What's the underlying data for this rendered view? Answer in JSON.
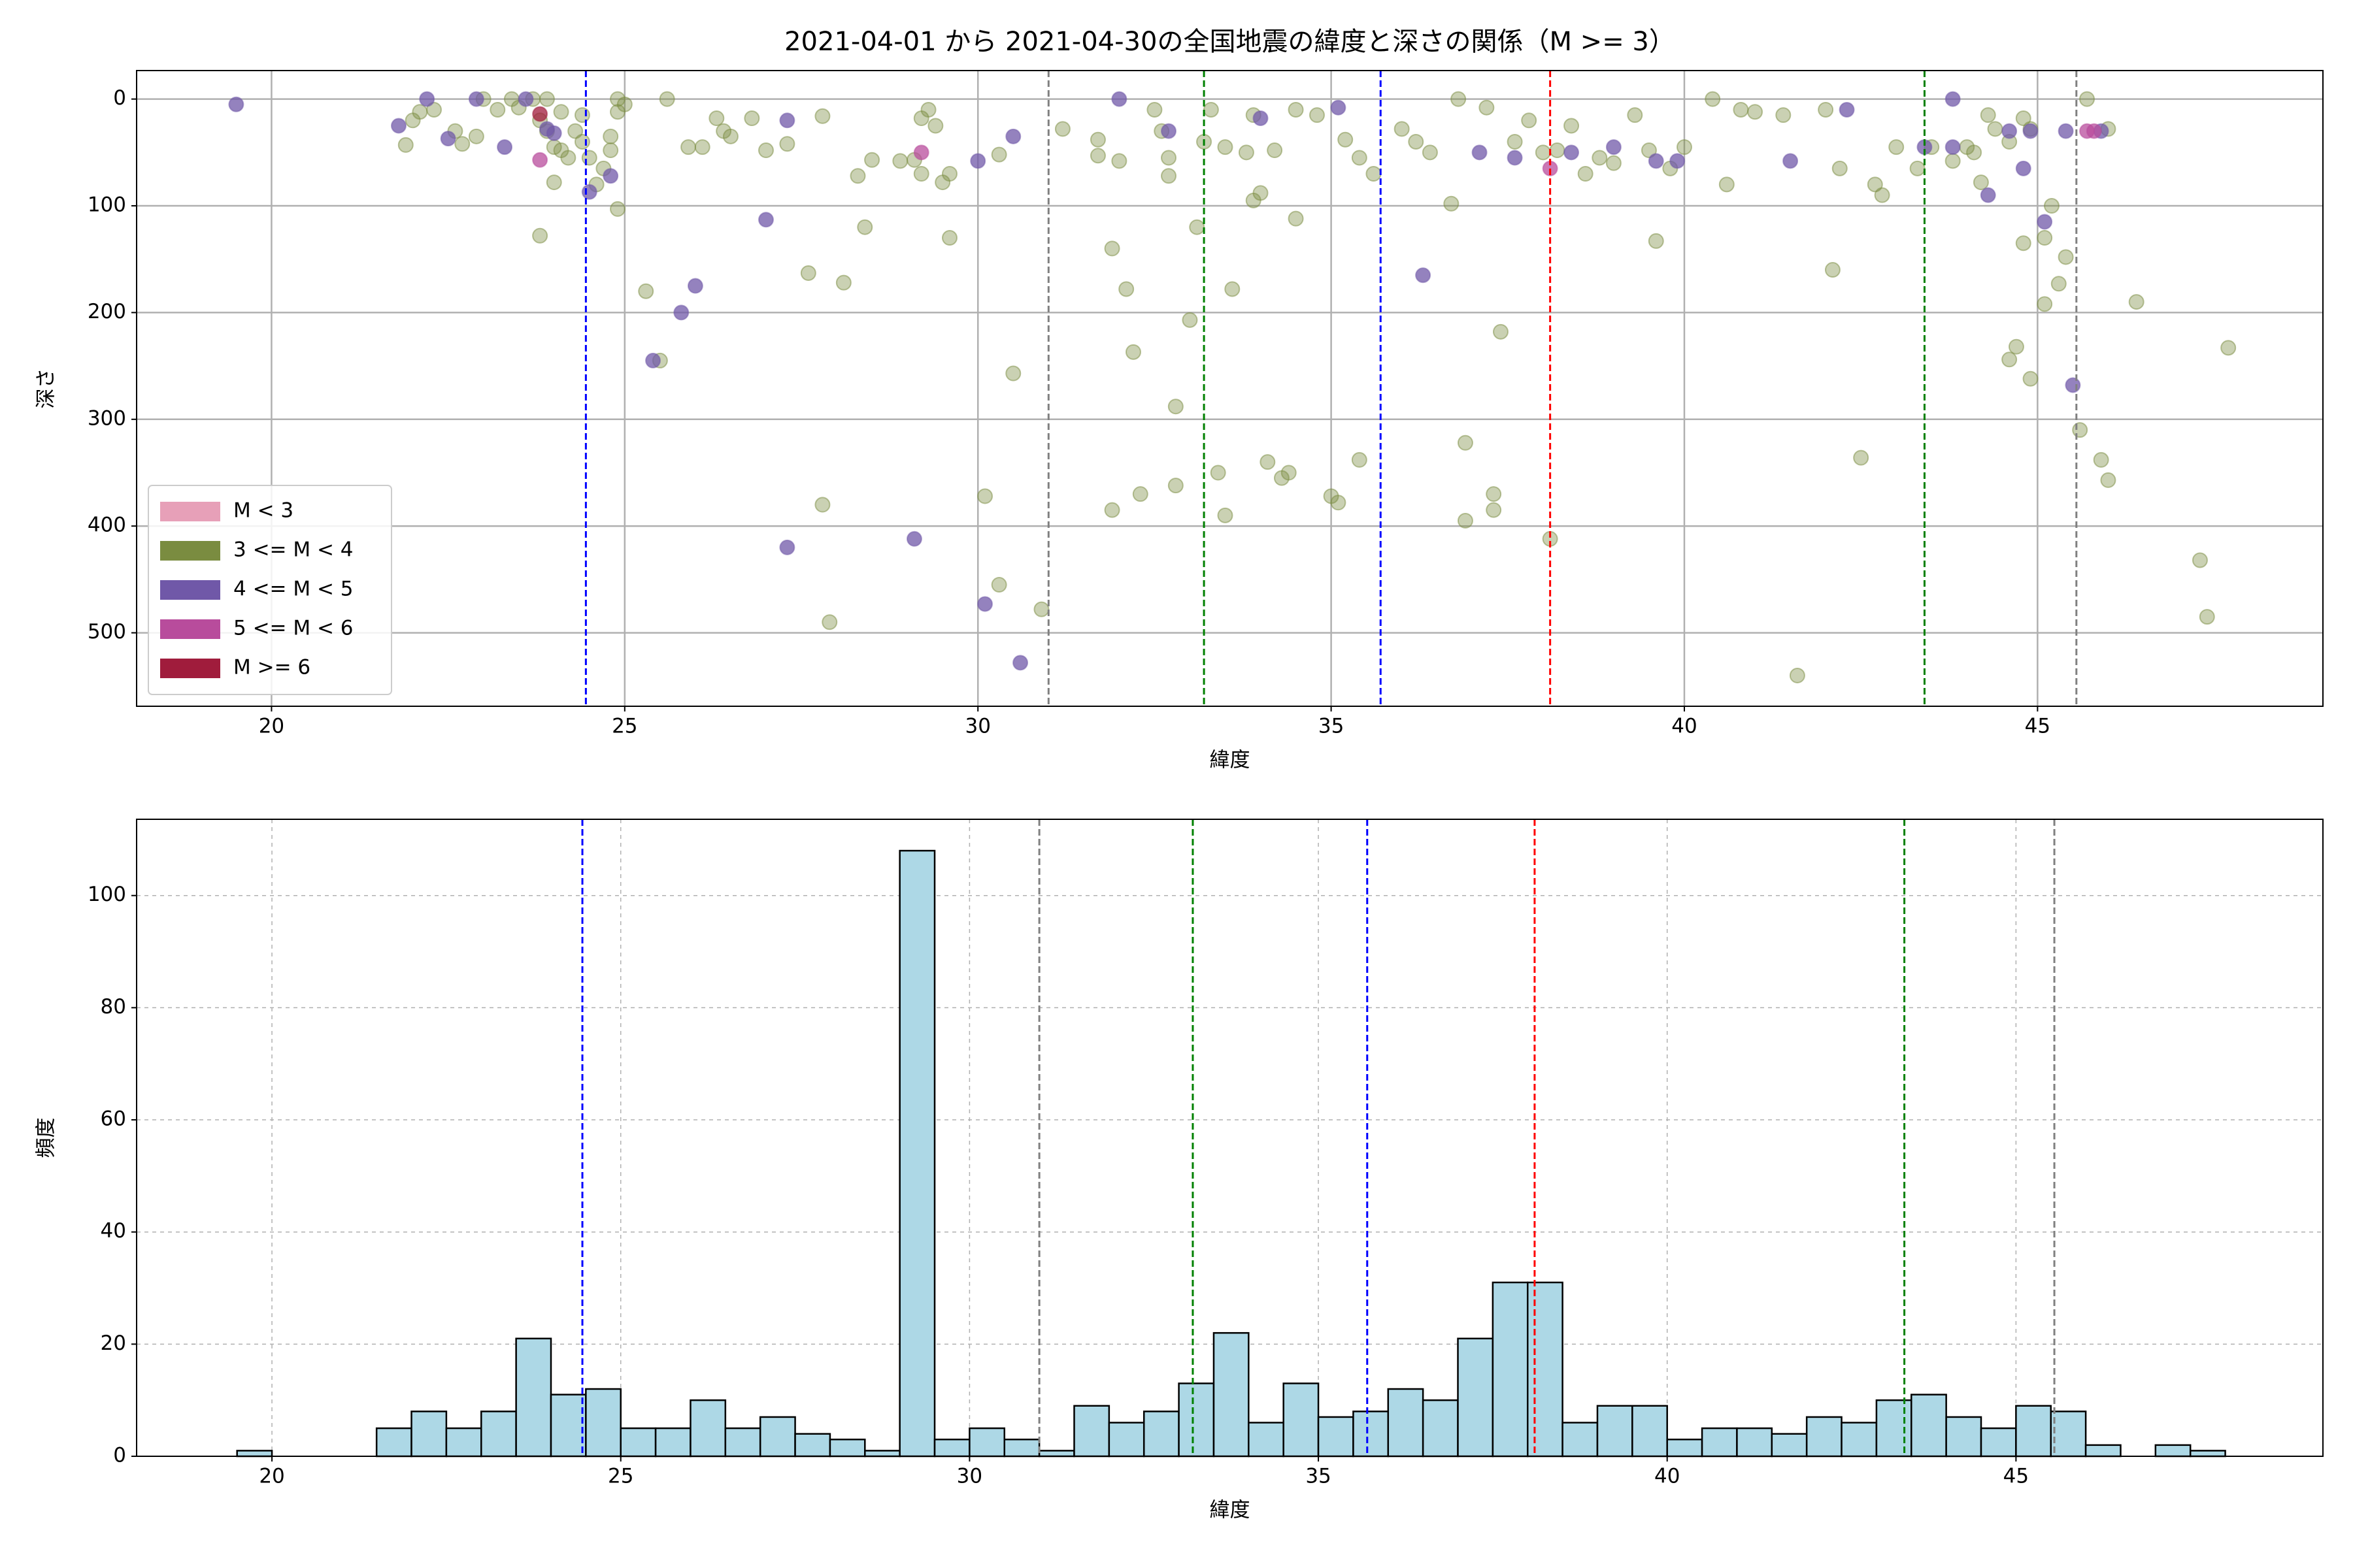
{
  "chart_data": [
    {
      "type": "scatter",
      "title": "2021-04-01 から 2021-04-30の全国地震の緯度と深さの関係（M >= 3）",
      "x_label": "緯度",
      "y_label": "深さ",
      "xlim": [
        18.09,
        49.04
      ],
      "ylim": [
        568.8,
        -26.7
      ],
      "xticks": [
        20,
        25,
        30,
        35,
        40,
        45
      ],
      "yticks": [
        0,
        100,
        200,
        300,
        400,
        500
      ],
      "grid": "solid",
      "legend": "lower left",
      "vlines": [
        {
          "x": 24.45,
          "color": "#0000ff"
        },
        {
          "x": 31.0,
          "color": "#808080"
        },
        {
          "x": 33.2,
          "color": "#008000"
        },
        {
          "x": 35.7,
          "color": "#0000ff"
        },
        {
          "x": 38.1,
          "color": "#ff0000"
        },
        {
          "x": 43.4,
          "color": "#008000"
        },
        {
          "x": 45.55,
          "color": "#808080"
        }
      ],
      "series": [
        {
          "name": "M < 3",
          "color": "#e7a0b8",
          "x": [],
          "y": []
        },
        {
          "name": "3 <= M < 4",
          "color": "#7a8c40",
          "x": [
            21.9,
            22.0,
            22.1,
            22.3,
            22.6,
            22.7,
            22.9,
            23.0,
            23.2,
            23.4,
            23.5,
            23.7,
            23.8,
            23.9,
            23.8,
            23.9,
            24.0,
            24.1,
            24.2,
            24.0,
            24.3,
            24.4,
            24.1,
            24.4,
            24.5,
            24.6,
            24.7,
            24.8,
            24.8,
            24.9,
            24.9,
            25.0,
            24.9,
            25.3,
            25.6,
            25.5,
            25.9,
            26.1,
            26.3,
            26.4,
            26.5,
            26.8,
            27.0,
            27.3,
            27.6,
            27.8,
            27.8,
            27.9,
            28.1,
            28.3,
            28.4,
            28.5,
            28.9,
            29.1,
            29.2,
            29.3,
            29.2,
            29.4,
            29.5,
            29.6,
            29.6,
            30.1,
            30.3,
            30.3,
            30.5,
            30.9,
            31.2,
            31.7,
            31.7,
            31.9,
            31.9,
            32.0,
            32.1,
            32.2,
            32.3,
            32.5,
            32.6,
            32.7,
            32.7,
            32.8,
            32.8,
            33.0,
            33.1,
            33.2,
            33.3,
            33.4,
            33.5,
            33.5,
            33.6,
            33.8,
            33.9,
            33.9,
            34.0,
            34.1,
            34.2,
            34.3,
            34.4,
            34.5,
            34.5,
            34.8,
            35.0,
            35.1,
            35.2,
            35.4,
            35.4,
            35.6,
            36.0,
            36.2,
            36.4,
            36.7,
            36.8,
            36.9,
            36.9,
            37.2,
            37.3,
            37.3,
            37.4,
            37.6,
            37.8,
            38.0,
            38.2,
            38.4,
            38.6,
            38.8,
            39.0,
            39.3,
            39.5,
            39.6,
            39.8,
            40.0,
            40.4,
            40.6,
            40.8,
            41.0,
            41.4,
            41.6,
            42.0,
            42.1,
            42.2,
            42.5,
            42.7,
            42.8,
            43.0,
            43.3,
            43.5,
            43.8,
            44.0,
            44.3,
            44.4,
            44.6,
            44.8,
            44.8,
            44.9,
            45.1,
            45.1,
            45.3,
            45.4,
            45.6,
            45.7,
            45.9,
            46.0,
            46.0,
            46.4,
            47.3,
            47.4,
            47.7,
            38.1,
            44.7,
            44.6,
            44.9,
            45.2,
            44.2,
            44.1
          ],
          "y": [
            43,
            20,
            12,
            10,
            30,
            42,
            35,
            0,
            10,
            0,
            8,
            0,
            20,
            0,
            128,
            30,
            45,
            48,
            55,
            78,
            30,
            40,
            12,
            15,
            55,
            80,
            65,
            35,
            48,
            103,
            0,
            5,
            12,
            180,
            0,
            245,
            45,
            45,
            18,
            30,
            35,
            18,
            48,
            42,
            163,
            16,
            380,
            490,
            172,
            72,
            120,
            57,
            58,
            57,
            18,
            10,
            70,
            25,
            78,
            130,
            70,
            372,
            455,
            52,
            257,
            478,
            28,
            53,
            38,
            140,
            385,
            58,
            178,
            237,
            370,
            10,
            30,
            55,
            72,
            288,
            362,
            207,
            120,
            40,
            10,
            350,
            45,
            390,
            178,
            50,
            95,
            15,
            88,
            340,
            48,
            355,
            350,
            10,
            112,
            15,
            372,
            378,
            38,
            55,
            338,
            70,
            28,
            40,
            50,
            98,
            0,
            322,
            395,
            8,
            370,
            385,
            218,
            40,
            20,
            50,
            48,
            25,
            70,
            55,
            60,
            15,
            48,
            133,
            65,
            45,
            0,
            80,
            10,
            12,
            15,
            540,
            10,
            160,
            65,
            336,
            80,
            90,
            45,
            65,
            45,
            58,
            45,
            15,
            28,
            40,
            18,
            135,
            28,
            130,
            192,
            173,
            148,
            310,
            0,
            338,
            28,
            357,
            190,
            432,
            485,
            233,
            412,
            232,
            244,
            262,
            100,
            78,
            50
          ]
        },
        {
          "name": "4 <= M < 5",
          "color": "#7058a8",
          "x": [
            19.5,
            21.8,
            22.2,
            22.5,
            22.9,
            23.3,
            23.6,
            23.9,
            24.0,
            24.5,
            24.8,
            25.8,
            26.0,
            25.4,
            27.0,
            27.3,
            27.3,
            29.1,
            30.0,
            30.5,
            30.6,
            30.1,
            32.0,
            32.7,
            34.0,
            35.1,
            36.3,
            37.1,
            37.6,
            38.4,
            39.0,
            39.6,
            39.9,
            41.5,
            42.3,
            43.4,
            43.8,
            43.8,
            44.3,
            44.6,
            44.9,
            45.1,
            45.4,
            45.5,
            45.9,
            44.8
          ],
          "y": [
            5,
            25,
            0,
            37,
            0,
            45,
            0,
            28,
            32,
            87,
            72,
            200,
            175,
            245,
            113,
            20,
            420,
            412,
            58,
            35,
            528,
            473,
            0,
            30,
            18,
            8,
            165,
            50,
            55,
            50,
            45,
            58,
            58,
            58,
            10,
            45,
            0,
            45,
            90,
            30,
            30,
            115,
            30,
            268,
            30,
            65
          ]
        },
        {
          "name": "5 <= M < 6",
          "color": "#b84c9c",
          "x": [
            23.8,
            29.2,
            45.7,
            45.8,
            38.1
          ],
          "y": [
            57,
            50,
            30,
            30,
            65
          ]
        },
        {
          "name": "M >= 6",
          "color": "#a01c3c",
          "x": [
            23.8
          ],
          "y": [
            14
          ]
        }
      ]
    },
    {
      "type": "histogram",
      "x_label": "緯度",
      "y_label": "頻度",
      "xlim": [
        18.06,
        49.4
      ],
      "ylim": [
        0,
        113.6
      ],
      "xticks": [
        20,
        25,
        30,
        35,
        40,
        45
      ],
      "yticks": [
        0,
        20,
        40,
        60,
        80,
        100
      ],
      "grid": "dashed",
      "color": "#add8e6",
      "vlines": [
        {
          "x": 24.45,
          "color": "#0000ff"
        },
        {
          "x": 31.0,
          "color": "#808080"
        },
        {
          "x": 33.2,
          "color": "#008000"
        },
        {
          "x": 35.7,
          "color": "#0000ff"
        },
        {
          "x": 38.1,
          "color": "#ff0000"
        },
        {
          "x": 43.4,
          "color": "#008000"
        },
        {
          "x": 45.55,
          "color": "#808080"
        }
      ],
      "bins": [
        19.5,
        20,
        20.5,
        21,
        21.5,
        22,
        22.5,
        23,
        23.5,
        24,
        24.5,
        25,
        25.5,
        26,
        26.5,
        27,
        27.5,
        28,
        28.5,
        29,
        29.5,
        30,
        30.5,
        31,
        31.5,
        32,
        32.5,
        33,
        33.5,
        34,
        34.5,
        35,
        35.5,
        36,
        36.5,
        37,
        37.5,
        38,
        38.5,
        39,
        39.5,
        40,
        40.5,
        41,
        41.5,
        42,
        42.5,
        43,
        43.5,
        44,
        44.5,
        45,
        45.5,
        46,
        46.5,
        47,
        47.5,
        48
      ],
      "values": [
        1,
        0,
        0,
        0,
        5,
        8,
        5,
        8,
        21,
        11,
        12,
        5,
        5,
        10,
        5,
        7,
        4,
        3,
        1,
        108,
        3,
        5,
        3,
        1,
        9,
        6,
        8,
        13,
        22,
        6,
        13,
        7,
        8,
        12,
        10,
        21,
        31,
        31,
        6,
        9,
        9,
        3,
        5,
        5,
        4,
        7,
        6,
        10,
        11,
        7,
        5,
        9,
        8,
        2,
        0,
        2,
        1
      ]
    }
  ]
}
